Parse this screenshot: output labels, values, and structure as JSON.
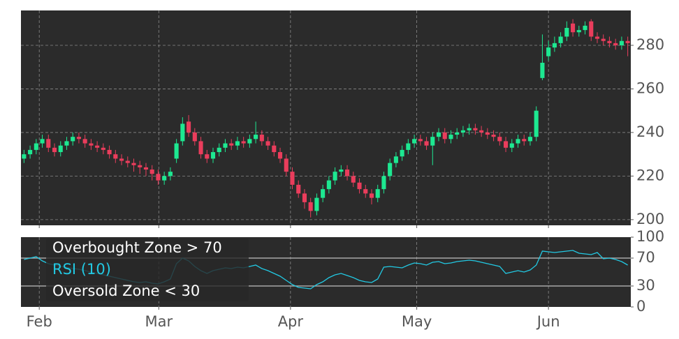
{
  "chart_data": [
    {
      "type": "candlestick",
      "categories": [
        null,
        null,
        null,
        null,
        null,
        null,
        null,
        null,
        null,
        null,
        null,
        null,
        null,
        null,
        null,
        null,
        null,
        null,
        null,
        null,
        null,
        null,
        null,
        null,
        null,
        null,
        null,
        null,
        null,
        null,
        null,
        null,
        null,
        null,
        null,
        null,
        null,
        null,
        null,
        null,
        null,
        null,
        null,
        null,
        null,
        null,
        null,
        null,
        null,
        null,
        null,
        null,
        null,
        null,
        null,
        null,
        null,
        null,
        null,
        null,
        null,
        null,
        null,
        null,
        null,
        null,
        null,
        null,
        null,
        null,
        null,
        null,
        null,
        null,
        null,
        null,
        null,
        null,
        null,
        null,
        null,
        null,
        null,
        null,
        null,
        null,
        null,
        null,
        null,
        null,
        null,
        null,
        null,
        null,
        null,
        null,
        null,
        null,
        null,
        null
      ],
      "open": [
        228,
        230,
        232,
        235,
        237,
        233,
        231,
        234,
        236,
        238,
        237,
        235,
        234,
        233,
        232,
        230,
        228,
        227,
        226,
        225,
        224,
        223,
        221,
        218,
        220,
        228,
        236,
        245,
        240,
        236,
        230,
        228,
        231,
        233,
        235,
        234,
        236,
        235,
        237,
        239,
        236,
        234,
        231,
        228,
        222,
        216,
        212,
        208,
        204,
        210,
        214,
        218,
        222,
        223,
        220,
        217,
        214,
        212,
        210,
        214,
        220,
        226,
        229,
        232,
        235,
        237,
        236,
        234,
        238,
        240,
        237,
        239,
        240,
        241,
        242,
        241,
        240,
        239,
        238,
        236,
        233,
        235,
        237,
        236,
        238,
        265,
        275,
        279,
        281,
        284,
        290,
        286,
        287,
        291,
        284,
        283,
        282,
        281,
        280,
        282
      ],
      "high": [
        232,
        234,
        237,
        239,
        239,
        235,
        236,
        238,
        240,
        240,
        239,
        237,
        236,
        235,
        234,
        232,
        230,
        229,
        228,
        227,
        226,
        225,
        223,
        222,
        224,
        237,
        247,
        248,
        242,
        238,
        232,
        233,
        235,
        237,
        237,
        238,
        238,
        239,
        245,
        241,
        238,
        236,
        233,
        230,
        224,
        218,
        214,
        210,
        212,
        216,
        220,
        224,
        225,
        225,
        222,
        219,
        216,
        214,
        216,
        222,
        228,
        231,
        234,
        237,
        239,
        239,
        238,
        240,
        242,
        242,
        241,
        242,
        243,
        244,
        244,
        243,
        242,
        241,
        240,
        238,
        237,
        239,
        239,
        240,
        252,
        285,
        282,
        284,
        286,
        291,
        292,
        289,
        291,
        292,
        286,
        285,
        284,
        283,
        284,
        284
      ],
      "low": [
        226,
        228,
        230,
        233,
        231,
        229,
        229,
        232,
        234,
        235,
        233,
        232,
        231,
        230,
        228,
        226,
        225,
        224,
        222,
        221,
        220,
        218,
        216,
        216,
        218,
        226,
        234,
        238,
        234,
        228,
        226,
        226,
        229,
        231,
        232,
        232,
        233,
        233,
        235,
        234,
        232,
        229,
        226,
        220,
        214,
        210,
        205,
        201,
        202,
        208,
        212,
        216,
        220,
        218,
        215,
        212,
        210,
        207,
        208,
        212,
        218,
        224,
        227,
        230,
        233,
        234,
        232,
        225,
        236,
        235,
        235,
        237,
        238,
        239,
        239,
        238,
        237,
        236,
        234,
        231,
        231,
        233,
        234,
        234,
        236,
        264,
        273,
        277,
        279,
        282,
        284,
        284,
        285,
        282,
        281,
        280,
        279,
        278,
        278,
        275
      ],
      "close": [
        230,
        232,
        235,
        237,
        233,
        231,
        234,
        236,
        238,
        237,
        235,
        234,
        233,
        232,
        230,
        228,
        227,
        226,
        225,
        224,
        223,
        221,
        218,
        220,
        222,
        235,
        244,
        240,
        236,
        230,
        228,
        231,
        233,
        235,
        234,
        236,
        235,
        237,
        239,
        236,
        234,
        231,
        228,
        222,
        216,
        212,
        208,
        204,
        210,
        214,
        218,
        222,
        223,
        220,
        217,
        214,
        212,
        210,
        214,
        220,
        226,
        229,
        232,
        235,
        237,
        236,
        234,
        238,
        240,
        237,
        239,
        240,
        241,
        242,
        241,
        240,
        239,
        238,
        236,
        233,
        235,
        237,
        236,
        238,
        250,
        272,
        279,
        281,
        284,
        288,
        286,
        287,
        289,
        284,
        283,
        282,
        281,
        280,
        282,
        281
      ],
      "up_color": "#1de891",
      "down_color": "#ea3d5c",
      "ylim": [
        197.4,
        296
      ],
      "yticks": [
        200,
        220,
        240,
        260,
        280
      ],
      "grid": true
    },
    {
      "type": "line",
      "series": [
        {
          "name": "RSI (10)",
          "color": "#22c9e3",
          "values": [
            68,
            70,
            72,
            66,
            62,
            60,
            58,
            57,
            55,
            54,
            52,
            50,
            48,
            46,
            44,
            42,
            40,
            38,
            36,
            35,
            36,
            34,
            33,
            36,
            40,
            62,
            70,
            66,
            58,
            52,
            48,
            52,
            54,
            56,
            55,
            57,
            56,
            58,
            60,
            55,
            52,
            48,
            44,
            38,
            32,
            28,
            27,
            26,
            32,
            36,
            42,
            46,
            48,
            45,
            42,
            38,
            36,
            35,
            40,
            57,
            58,
            57,
            56,
            60,
            63,
            62,
            60,
            64,
            65,
            62,
            63,
            65,
            66,
            67,
            66,
            64,
            62,
            60,
            58,
            48,
            50,
            52,
            50,
            53,
            60,
            80,
            79,
            78,
            79,
            80,
            81,
            77,
            76,
            75,
            78,
            69,
            70,
            68,
            65,
            60
          ]
        }
      ],
      "zones": [
        {
          "name": "Overbought Zone > 70",
          "value": 70
        },
        {
          "name": "Oversold Zone < 30",
          "value": 30
        }
      ],
      "zone_color": "#a8a8a8",
      "ylim": [
        0,
        100
      ],
      "yticks": [
        0,
        30,
        70,
        100
      ],
      "xticks": [
        {
          "value": 2.5,
          "label": "Feb"
        },
        {
          "value": 22.1,
          "label": "Mar"
        },
        {
          "value": 43.7,
          "label": "Apr"
        },
        {
          "value": 64.4,
          "label": "May"
        },
        {
          "value": 86,
          "label": "Jun"
        }
      ],
      "grid": true
    }
  ]
}
